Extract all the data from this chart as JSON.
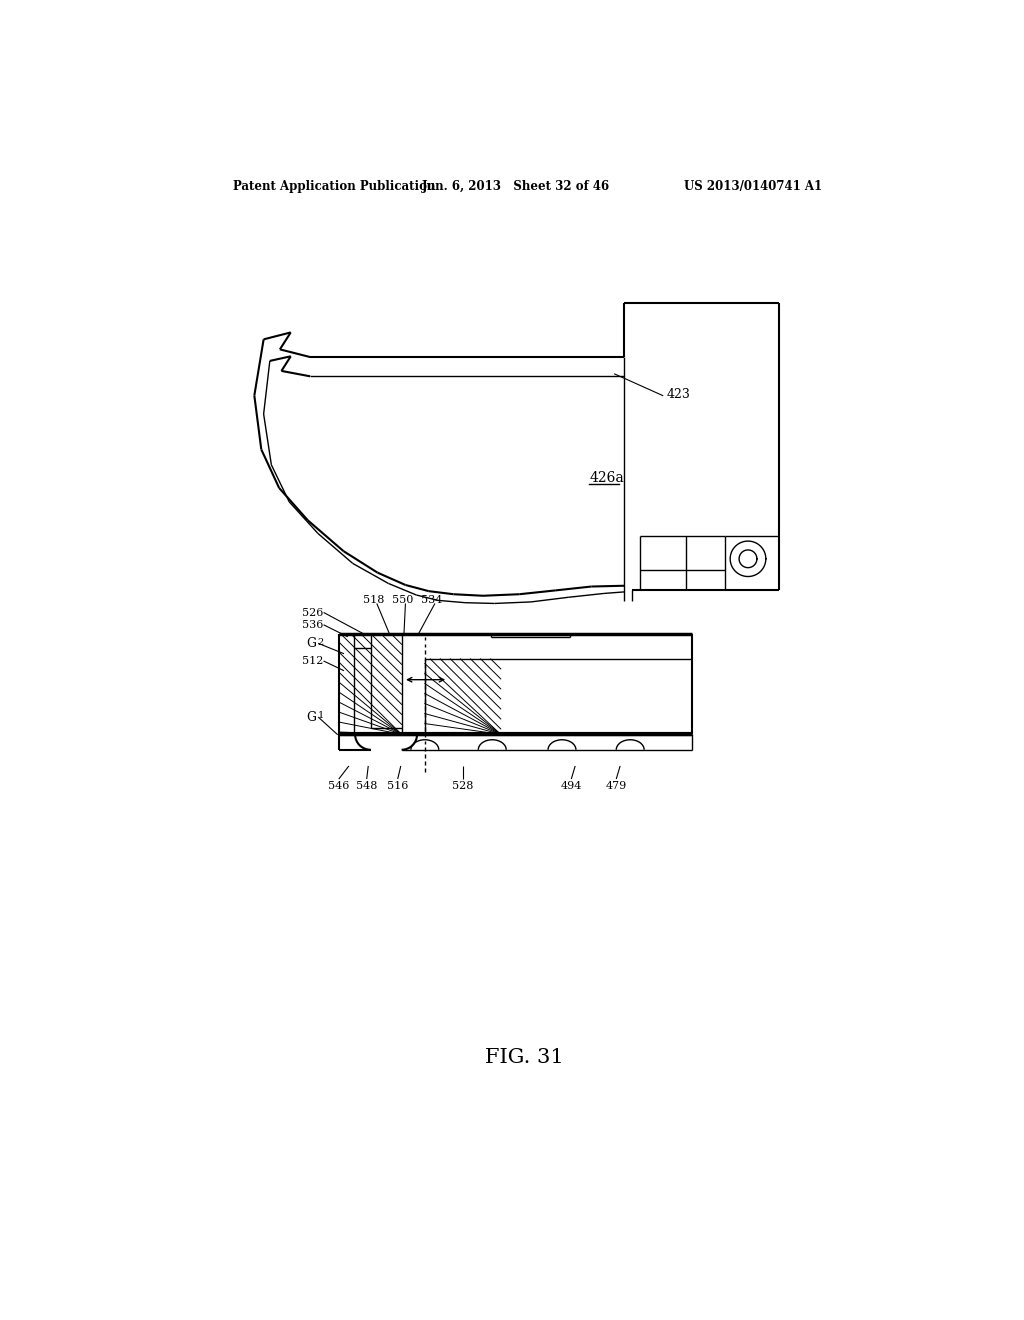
{
  "bg_color": "#ffffff",
  "header_left": "Patent Application Publication",
  "header_center": "Jun. 6, 2013   Sheet 32 of 46",
  "header_right": "US 2013/0140741 A1",
  "fig_label": "FIG. 31"
}
